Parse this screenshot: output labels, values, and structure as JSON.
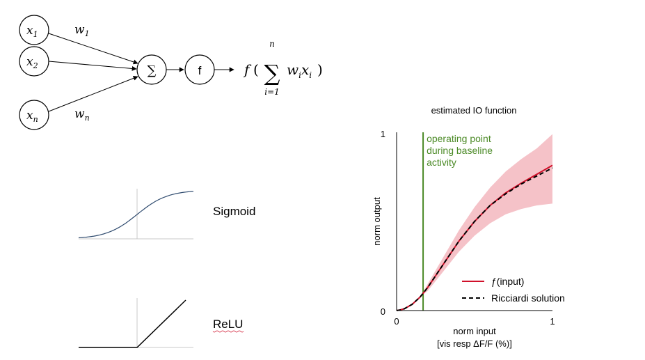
{
  "neuron": {
    "inputs": [
      {
        "var": "x",
        "sub": "1",
        "weight_var": "w",
        "weight_sub": "1"
      },
      {
        "var": "x",
        "sub": "2"
      },
      {
        "var": "x",
        "sub": "n",
        "weight_var": "w",
        "weight_sub": "n"
      }
    ],
    "sum_symbol": "∑",
    "activation_label": "f",
    "output_formula": {
      "func": "f",
      "open": "(",
      "sum_symbol": "∑",
      "upper": "n",
      "lower": "i=1",
      "term_w": "w",
      "term_w_sub": "i",
      "term_x": "x",
      "term_x_sub": "i",
      "close": ")"
    }
  },
  "activations": [
    {
      "label": "Sigmoid"
    },
    {
      "label": "ReLU"
    }
  ],
  "colors": {
    "sigmoid_curve": "#2e4a6e",
    "ricciardi": "#000000",
    "f_input": "#d0102a",
    "band": "#f5c2c8",
    "operating_point": "#4b8a26"
  },
  "chart_data": {
    "type": "line",
    "title": "estimated IO function",
    "xlabel": "norm input",
    "xlabel2": "[vis resp ΔF/F (%)]",
    "ylabel": "norm output",
    "xlim": [
      0,
      1
    ],
    "ylim": [
      0,
      1
    ],
    "xticks": [
      "0",
      "1"
    ],
    "yticks": [
      "0",
      "1"
    ],
    "grid": false,
    "legend_position": "bottom-right",
    "annotation": {
      "x": 0.17,
      "lines": [
        "operating point",
        "during baseline",
        "activity"
      ]
    },
    "series": [
      {
        "name": "ƒ(input)",
        "style": "solid",
        "x": [
          0,
          0.02,
          0.05,
          0.1,
          0.15,
          0.2,
          0.3,
          0.4,
          0.5,
          0.6,
          0.7,
          0.8,
          0.9,
          1.0
        ],
        "y": [
          0,
          0.003,
          0.01,
          0.035,
          0.075,
          0.13,
          0.26,
          0.39,
          0.5,
          0.59,
          0.66,
          0.715,
          0.765,
          0.815
        ]
      },
      {
        "name": "Ricciardi solution",
        "style": "dashed",
        "x": [
          0,
          0.02,
          0.05,
          0.1,
          0.15,
          0.2,
          0.3,
          0.4,
          0.5,
          0.6,
          0.7,
          0.8,
          0.9,
          1.0
        ],
        "y": [
          0,
          0.003,
          0.01,
          0.035,
          0.075,
          0.13,
          0.26,
          0.39,
          0.5,
          0.59,
          0.655,
          0.71,
          0.755,
          0.8
        ]
      }
    ],
    "band": {
      "x": [
        0.15,
        0.2,
        0.3,
        0.4,
        0.5,
        0.6,
        0.7,
        0.8,
        0.9,
        1.0
      ],
      "upper": [
        0.075,
        0.15,
        0.3,
        0.45,
        0.58,
        0.69,
        0.78,
        0.85,
        0.91,
        0.99
      ],
      "lower": [
        0.075,
        0.11,
        0.22,
        0.33,
        0.42,
        0.49,
        0.54,
        0.57,
        0.59,
        0.6
      ]
    }
  }
}
